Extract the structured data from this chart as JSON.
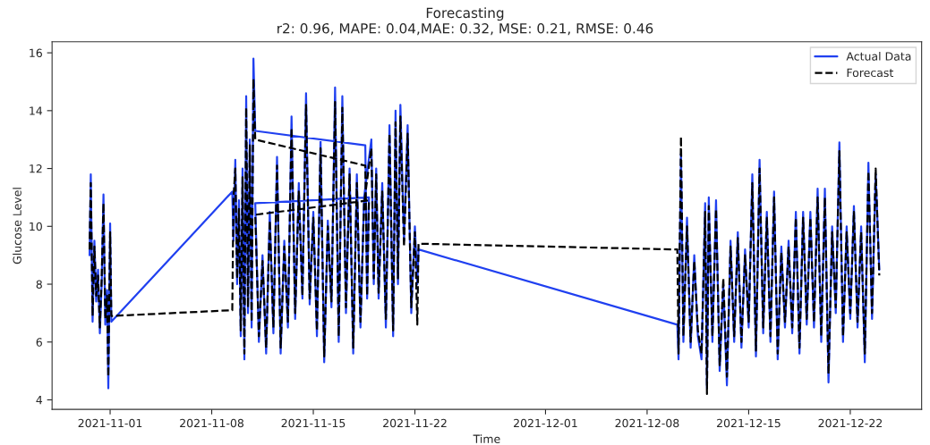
{
  "chart_data": {
    "type": "line",
    "title": "Forecasting",
    "subtitle": "r2: 0.96, MAPE: 0.04,MAE: 0.32, MSE: 0.21, RMSE: 0.46",
    "xlabel": "Time",
    "ylabel": "Glucose Level",
    "xlim": [
      "2021-10-28T00:00",
      "2021-12-26T22:00"
    ],
    "xticks": [
      "2021-11-01",
      "2021-11-08",
      "2021-11-15",
      "2021-11-22",
      "2021-12-01",
      "2021-12-08",
      "2021-12-15",
      "2021-12-22"
    ],
    "ylim": [
      3.67,
      16.38
    ],
    "yticks": [
      4,
      6,
      8,
      10,
      12,
      14,
      16
    ],
    "grid": false,
    "legend": "top right",
    "series": [
      {
        "name": "Actual Data",
        "color": "#2040f0",
        "line_style": "solid",
        "x": [
          "2021-10-30T14:00",
          "2021-10-30T16:00",
          "2021-10-30T19:00",
          "2021-10-30T22:00",
          "2021-10-31T01:00",
          "2021-10-31T04:00",
          "2021-10-31T07:00",
          "2021-10-31T10:00",
          "2021-10-31T13:00",
          "2021-10-31T16:00",
          "2021-10-31T19:00",
          "2021-10-31T21:00",
          "2021-11-01T00:00",
          "2021-11-01T02:00",
          "2021-11-09T10:00",
          "2021-11-09T12:00",
          "2021-11-09T15:00",
          "2021-11-09T18:00",
          "2021-11-09T21:00",
          "2021-11-10T00:00",
          "2021-11-10T03:00",
          "2021-11-10T06:00",
          "2021-11-10T09:00",
          "2021-11-10T12:00",
          "2021-11-10T15:00",
          "2021-11-10T18:00",
          "2021-11-10T21:00",
          "2021-11-11T00:00",
          "2021-11-18T14:00",
          "2021-11-18T17:00",
          "2021-11-18T20:00",
          "2021-11-11T00:00",
          "2021-11-11T06:00",
          "2021-11-11T12:00",
          "2021-11-11T18:00",
          "2021-11-12T00:00",
          "2021-11-12T06:00",
          "2021-11-12T12:00",
          "2021-11-12T18:00",
          "2021-11-13T00:00",
          "2021-11-13T06:00",
          "2021-11-13T12:00",
          "2021-11-13T18:00",
          "2021-11-14T00:00",
          "2021-11-14T06:00",
          "2021-11-14T12:00",
          "2021-11-14T18:00",
          "2021-11-15T00:00",
          "2021-11-15T06:00",
          "2021-11-15T12:00",
          "2021-11-15T18:00",
          "2021-11-16T00:00",
          "2021-11-16T06:00",
          "2021-11-16T12:00",
          "2021-11-16T18:00",
          "2021-11-17T00:00",
          "2021-11-17T06:00",
          "2021-11-17T12:00",
          "2021-11-17T18:00",
          "2021-11-18T00:00",
          "2021-11-18T06:00",
          "2021-11-18T12:00",
          "2021-11-19T00:00",
          "2021-11-19T04:00",
          "2021-11-19T08:00",
          "2021-11-19T12:00",
          "2021-11-19T18:00",
          "2021-11-20T00:00",
          "2021-11-20T06:00",
          "2021-11-20T12:00",
          "2021-11-20T16:00",
          "2021-11-20T20:00",
          "2021-11-21T00:00",
          "2021-11-21T06:00",
          "2021-11-21T12:00",
          "2021-11-21T18:00",
          "2021-11-22T00:00",
          "2021-11-22T04:00",
          "2021-11-22T06:00",
          "2021-12-10T02:00",
          "2021-12-10T04:00",
          "2021-12-10T08:00",
          "2021-12-10T12:00",
          "2021-12-10T18:00",
          "2021-12-11T00:00",
          "2021-12-11T06:00",
          "2021-12-11T12:00",
          "2021-12-11T18:00",
          "2021-12-12T00:00",
          "2021-12-12T03:00",
          "2021-12-12T06:00",
          "2021-12-12T12:00",
          "2021-12-12T18:00",
          "2021-12-13T00:00",
          "2021-12-13T06:00",
          "2021-12-13T12:00",
          "2021-12-13T18:00",
          "2021-12-14T00:00",
          "2021-12-14T06:00",
          "2021-12-14T12:00",
          "2021-12-14T18:00",
          "2021-12-15T00:00",
          "2021-12-15T06:00",
          "2021-12-15T12:00",
          "2021-12-15T18:00",
          "2021-12-16T00:00",
          "2021-12-16T06:00",
          "2021-12-16T12:00",
          "2021-12-16T18:00",
          "2021-12-17T00:00",
          "2021-12-17T06:00",
          "2021-12-17T12:00",
          "2021-12-17T18:00",
          "2021-12-18T00:00",
          "2021-12-18T06:00",
          "2021-12-18T12:00",
          "2021-12-18T18:00",
          "2021-12-19T00:00",
          "2021-12-19T06:00",
          "2021-12-19T12:00",
          "2021-12-19T18:00",
          "2021-12-20T00:00",
          "2021-12-20T06:00",
          "2021-12-20T12:00",
          "2021-12-20T18:00",
          "2021-12-21T00:00",
          "2021-12-21T06:00",
          "2021-12-21T12:00",
          "2021-12-21T18:00",
          "2021-12-22T00:00",
          "2021-12-22T06:00",
          "2021-12-22T12:00",
          "2021-12-22T18:00",
          "2021-12-23T00:00",
          "2021-12-23T06:00",
          "2021-12-23T12:00",
          "2021-12-23T18:00",
          "2021-12-24T00:00"
        ],
        "values": [
          9.0,
          11.8,
          6.7,
          9.5,
          7.4,
          8.5,
          6.3,
          8.0,
          11.1,
          6.6,
          7.8,
          4.4,
          10.1,
          6.7,
          11.2,
          9.5,
          12.3,
          8.0,
          10.9,
          6.2,
          12.0,
          5.4,
          14.5,
          7.0,
          13.0,
          6.5,
          15.8,
          13.3,
          12.8,
          7.5,
          11.0,
          10.8,
          6.0,
          9.0,
          5.6,
          10.5,
          6.3,
          12.4,
          5.6,
          9.5,
          6.5,
          13.8,
          6.8,
          11.5,
          7.5,
          14.6,
          7.3,
          10.5,
          6.2,
          13.0,
          5.3,
          10.2,
          7.2,
          14.8,
          6.0,
          14.5,
          7.0,
          12.0,
          5.6,
          11.8,
          6.5,
          11.0,
          13.0,
          8.0,
          12.0,
          7.5,
          11.5,
          6.5,
          13.5,
          6.2,
          14.0,
          8.0,
          14.2,
          9.5,
          13.5,
          7.0,
          10.0,
          8.0,
          9.2,
          6.6,
          5.4,
          12.5,
          6.0,
          10.3,
          5.8,
          9.0,
          6.2,
          5.4,
          10.8,
          4.4,
          11.0,
          6.0,
          10.9,
          5.0,
          8.0,
          4.5,
          9.5,
          6.0,
          9.8,
          5.8,
          9.2,
          6.5,
          11.8,
          5.5,
          12.3,
          6.3,
          10.5,
          6.0,
          11.2,
          5.4,
          9.3,
          6.5,
          9.5,
          6.3,
          10.5,
          5.6,
          10.5,
          6.6,
          10.5,
          6.5,
          11.3,
          6.0,
          11.3,
          4.6,
          10.0,
          7.0,
          12.9,
          6.0,
          10.0,
          6.8,
          10.7,
          6.5,
          10.0,
          5.3,
          12.2,
          6.8,
          11.8,
          8.5
        ]
      },
      {
        "name": "Forecast",
        "color": "#000000",
        "line_style": "dashed",
        "x": [
          "2021-10-30T14:00",
          "2021-10-30T16:00",
          "2021-10-30T19:00",
          "2021-10-30T22:00",
          "2021-10-31T01:00",
          "2021-10-31T04:00",
          "2021-10-31T07:00",
          "2021-10-31T10:00",
          "2021-10-31T13:00",
          "2021-10-31T16:00",
          "2021-10-31T19:00",
          "2021-10-31T21:00",
          "2021-11-01T00:00",
          "2021-11-01T02:00",
          "2021-11-09T10:00",
          "2021-11-09T12:00",
          "2021-11-09T15:00",
          "2021-11-09T18:00",
          "2021-11-09T21:00",
          "2021-11-10T00:00",
          "2021-11-10T03:00",
          "2021-11-10T06:00",
          "2021-11-10T09:00",
          "2021-11-10T12:00",
          "2021-11-10T15:00",
          "2021-11-10T18:00",
          "2021-11-10T21:00",
          "2021-11-11T00:00",
          "2021-11-18T14:00",
          "2021-11-18T17:00",
          "2021-11-18T20:00",
          "2021-11-11T00:00",
          "2021-11-11T06:00",
          "2021-11-11T12:00",
          "2021-11-11T18:00",
          "2021-11-12T00:00",
          "2021-11-12T06:00",
          "2021-11-12T12:00",
          "2021-11-12T18:00",
          "2021-11-13T00:00",
          "2021-11-13T06:00",
          "2021-11-13T12:00",
          "2021-11-13T18:00",
          "2021-11-14T00:00",
          "2021-11-14T06:00",
          "2021-11-14T12:00",
          "2021-11-14T18:00",
          "2021-11-15T00:00",
          "2021-11-15T06:00",
          "2021-11-15T12:00",
          "2021-11-15T18:00",
          "2021-11-16T00:00",
          "2021-11-16T06:00",
          "2021-11-16T12:00",
          "2021-11-16T18:00",
          "2021-11-17T00:00",
          "2021-11-17T06:00",
          "2021-11-17T12:00",
          "2021-11-17T18:00",
          "2021-11-18T00:00",
          "2021-11-18T06:00",
          "2021-11-18T12:00",
          "2021-11-19T00:00",
          "2021-11-19T04:00",
          "2021-11-19T08:00",
          "2021-11-19T12:00",
          "2021-11-19T18:00",
          "2021-11-20T00:00",
          "2021-11-20T06:00",
          "2021-11-20T12:00",
          "2021-11-20T16:00",
          "2021-11-20T20:00",
          "2021-11-21T00:00",
          "2021-11-21T06:00",
          "2021-11-21T12:00",
          "2021-11-21T18:00",
          "2021-11-22T00:00",
          "2021-11-22T04:00",
          "2021-11-22T06:00",
          "2021-12-10T02:00",
          "2021-12-10T04:00",
          "2021-12-10T08:00",
          "2021-12-10T12:00",
          "2021-12-10T18:00",
          "2021-12-11T00:00",
          "2021-12-11T06:00",
          "2021-12-11T12:00",
          "2021-12-11T18:00",
          "2021-12-12T00:00",
          "2021-12-12T03:00",
          "2021-12-12T06:00",
          "2021-12-12T12:00",
          "2021-12-12T18:00",
          "2021-12-13T00:00",
          "2021-12-13T06:00",
          "2021-12-13T12:00",
          "2021-12-13T18:00",
          "2021-12-14T00:00",
          "2021-12-14T06:00",
          "2021-12-14T12:00",
          "2021-12-14T18:00",
          "2021-12-15T00:00",
          "2021-12-15T06:00",
          "2021-12-15T12:00",
          "2021-12-15T18:00",
          "2021-12-16T00:00",
          "2021-12-16T06:00",
          "2021-12-16T12:00",
          "2021-12-16T18:00",
          "2021-12-17T00:00",
          "2021-12-17T06:00",
          "2021-12-17T12:00",
          "2021-12-17T18:00",
          "2021-12-18T00:00",
          "2021-12-18T06:00",
          "2021-12-18T12:00",
          "2021-12-18T18:00",
          "2021-12-19T00:00",
          "2021-12-19T06:00",
          "2021-12-19T12:00",
          "2021-12-19T18:00",
          "2021-12-20T00:00",
          "2021-12-20T06:00",
          "2021-12-20T12:00",
          "2021-12-20T18:00",
          "2021-12-21T00:00",
          "2021-12-21T06:00",
          "2021-12-21T12:00",
          "2021-12-21T18:00",
          "2021-12-22T00:00",
          "2021-12-22T06:00",
          "2021-12-22T12:00",
          "2021-12-22T18:00",
          "2021-12-23T00:00",
          "2021-12-23T06:00",
          "2021-12-23T12:00",
          "2021-12-23T18:00",
          "2021-12-24T00:00"
        ],
        "values": [
          9.2,
          11.5,
          6.9,
          9.3,
          7.6,
          8.3,
          6.5,
          8.2,
          10.8,
          6.8,
          7.6,
          4.8,
          9.8,
          6.9,
          7.1,
          11.0,
          12.0,
          8.2,
          10.6,
          6.4,
          11.7,
          5.6,
          14.1,
          7.2,
          12.8,
          6.7,
          15.1,
          13.0,
          12.1,
          7.6,
          10.9,
          10.4,
          6.2,
          8.8,
          5.8,
          10.2,
          6.5,
          12.1,
          5.8,
          9.3,
          6.7,
          13.4,
          7.0,
          11.2,
          7.6,
          14.2,
          7.5,
          10.3,
          6.4,
          12.7,
          5.5,
          10.0,
          7.4,
          14.3,
          6.2,
          14.1,
          7.2,
          11.8,
          5.8,
          11.5,
          6.7,
          10.8,
          12.7,
          8.2,
          11.8,
          7.7,
          11.2,
          6.8,
          13.2,
          6.4,
          13.6,
          8.2,
          13.8,
          9.3,
          13.2,
          7.2,
          9.8,
          6.6,
          9.4,
          9.2,
          5.6,
          13.1,
          6.2,
          10.0,
          6.0,
          8.8,
          6.4,
          5.6,
          10.5,
          4.2,
          10.7,
          6.2,
          10.6,
          5.2,
          8.2,
          4.8,
          9.3,
          6.2,
          9.6,
          6.0,
          9.0,
          6.7,
          11.5,
          5.7,
          12.0,
          6.5,
          10.3,
          6.2,
          11.0,
          5.6,
          9.1,
          6.7,
          9.3,
          6.5,
          10.3,
          5.8,
          10.3,
          6.8,
          10.3,
          6.7,
          11.0,
          6.2,
          11.0,
          4.9,
          9.8,
          7.2,
          12.6,
          6.2,
          9.8,
          7.0,
          10.5,
          6.7,
          9.8,
          5.6,
          11.9,
          7.0,
          12.0,
          8.3
        ]
      }
    ]
  }
}
